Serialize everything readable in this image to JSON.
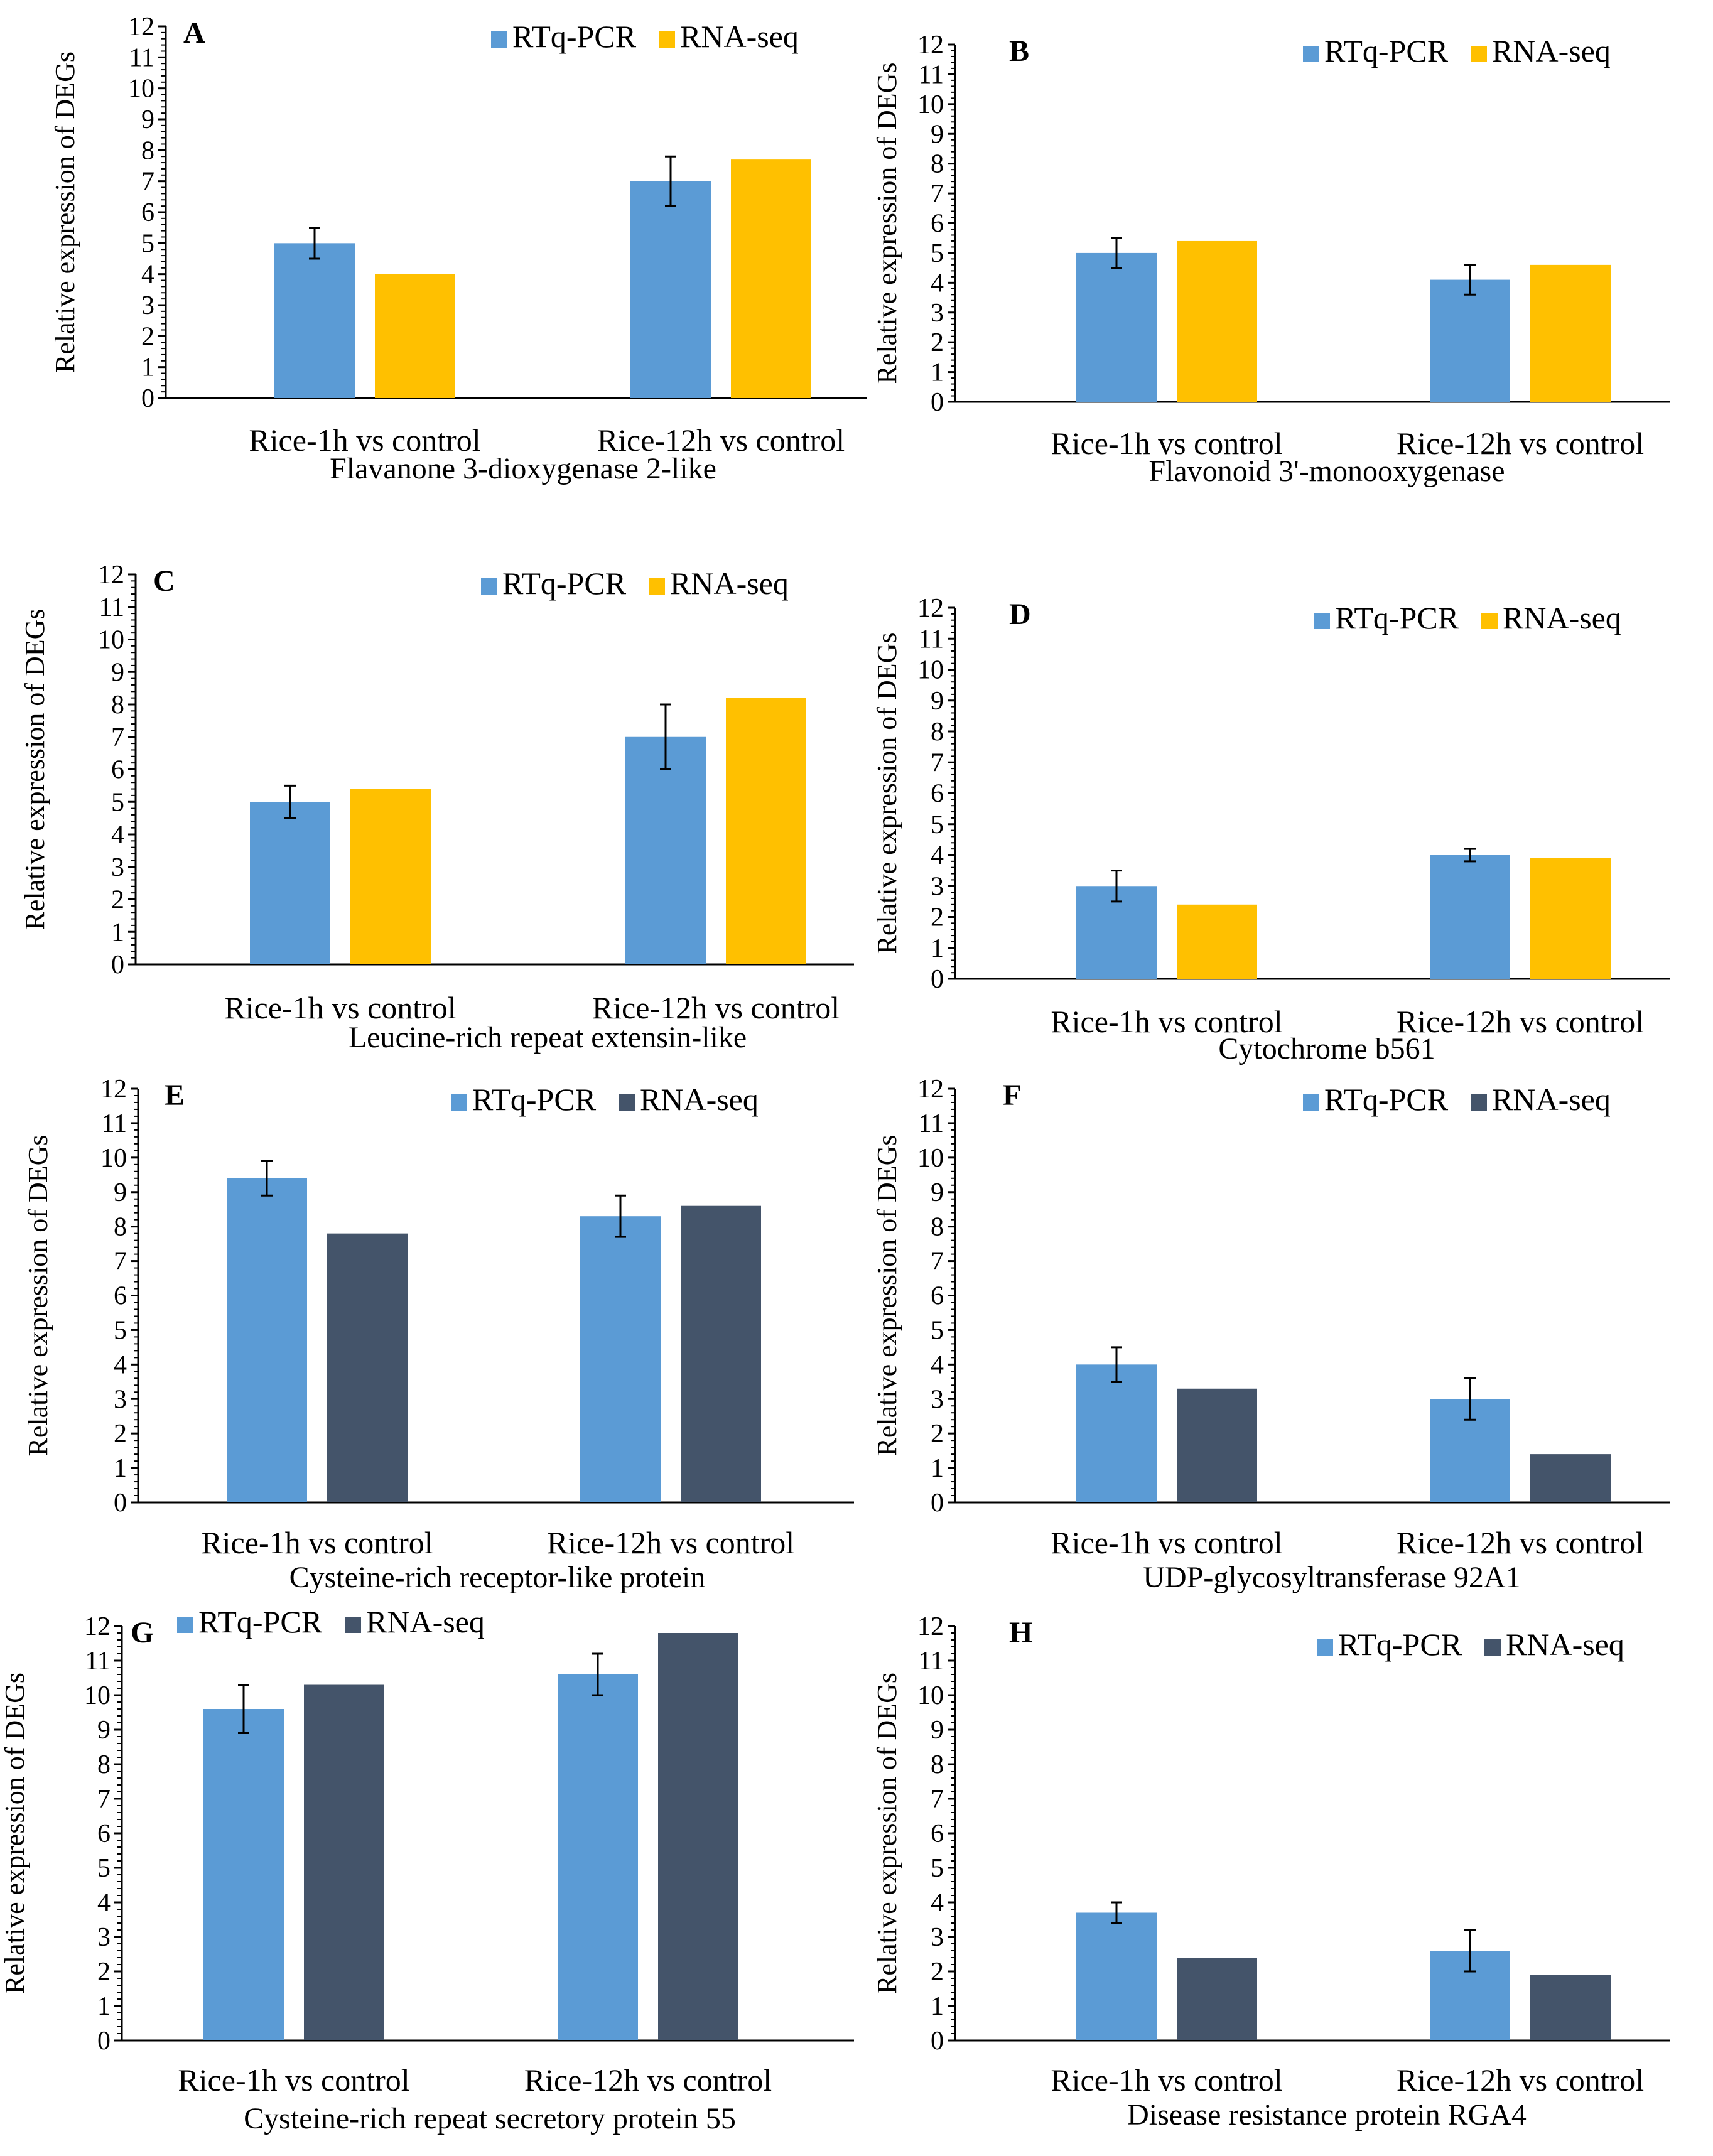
{
  "figure_description_label": "Figure",
  "colors": {
    "rtqpcr": "#5b9bd5",
    "rnaseq_gold": "#ffc000",
    "rnaseq_dark": "#44546a",
    "axis": "#000000"
  },
  "chart_data": [
    {
      "panel": "A",
      "type": "bar",
      "title": "Flavanone  3-dioxygenase  2-like",
      "ylabel": "Relative expression of DEGs",
      "ylim": [
        0,
        12
      ],
      "yticks": [
        0,
        1,
        2,
        3,
        4,
        5,
        6,
        7,
        8,
        9,
        10,
        11,
        12
      ],
      "categories": [
        "Rice-1h vs control",
        "Rice-12h vs control"
      ],
      "series": [
        {
          "name": "RTq-PCR",
          "values": [
            5.0,
            7.0
          ],
          "error": [
            0.5,
            0.8
          ],
          "color": "#5b9bd5"
        },
        {
          "name": "RNA-seq",
          "values": [
            4.0,
            7.7
          ],
          "color": "#ffc000"
        }
      ]
    },
    {
      "panel": "B",
      "type": "bar",
      "title": "Flavonoid  3'-monooxygenase",
      "ylabel": "Relative expression of DEGs",
      "ylim": [
        0,
        12
      ],
      "yticks": [
        0,
        1,
        2,
        3,
        4,
        5,
        6,
        7,
        8,
        9,
        10,
        11,
        12
      ],
      "categories": [
        "Rice-1h vs control",
        "Rice-12h vs control"
      ],
      "series": [
        {
          "name": "RTq-PCR",
          "values": [
            5.0,
            4.1
          ],
          "error": [
            0.5,
            0.5
          ],
          "color": "#5b9bd5"
        },
        {
          "name": "RNA-seq",
          "values": [
            5.4,
            4.6
          ],
          "color": "#ffc000"
        }
      ]
    },
    {
      "panel": "C",
      "type": "bar",
      "title": "Leucine-rich  repeat  extensin-like",
      "ylabel": "Relative expression of DEGs",
      "ylim": [
        0,
        12
      ],
      "yticks": [
        0,
        1,
        2,
        3,
        4,
        5,
        6,
        7,
        8,
        9,
        10,
        11,
        12
      ],
      "categories": [
        "Rice-1h vs control",
        "Rice-12h vs control"
      ],
      "series": [
        {
          "name": "RTq-PCR",
          "values": [
            5.0,
            7.0
          ],
          "error": [
            0.5,
            1.0
          ],
          "color": "#5b9bd5"
        },
        {
          "name": "RNA-seq",
          "values": [
            5.4,
            8.2
          ],
          "color": "#ffc000"
        }
      ]
    },
    {
      "panel": "D",
      "type": "bar",
      "title": "Cytochrome  b561",
      "ylabel": "Relative expression of DEGs",
      "ylim": [
        0,
        12
      ],
      "yticks": [
        0,
        1,
        2,
        3,
        4,
        5,
        6,
        7,
        8,
        9,
        10,
        11,
        12
      ],
      "categories": [
        "Rice-1h vs control",
        "Rice-12h vs control"
      ],
      "series": [
        {
          "name": "RTq-PCR",
          "values": [
            3.0,
            4.0
          ],
          "error": [
            0.5,
            0.2
          ],
          "color": "#5b9bd5"
        },
        {
          "name": "RNA-seq",
          "values": [
            2.4,
            3.9
          ],
          "color": "#ffc000"
        }
      ]
    },
    {
      "panel": "E",
      "type": "bar",
      "title": "Cysteine-rich  receptor-like  protein",
      "ylabel": "Relative expression of DEGs",
      "ylim": [
        0,
        12
      ],
      "yticks": [
        0,
        1,
        2,
        3,
        4,
        5,
        6,
        7,
        8,
        9,
        10,
        11,
        12
      ],
      "categories": [
        "Rice-1h vs control",
        "Rice-12h vs control"
      ],
      "series": [
        {
          "name": "RTq-PCR",
          "values": [
            9.4,
            8.3
          ],
          "error": [
            0.5,
            0.6
          ],
          "color": "#5b9bd5"
        },
        {
          "name": "RNA-seq",
          "values": [
            7.8,
            8.6
          ],
          "color": "#44546a"
        }
      ]
    },
    {
      "panel": "F",
      "type": "bar",
      "title": "UDP-glycosyltransferase  92A1",
      "ylabel": "Relative expression of DEGs",
      "ylim": [
        0,
        12
      ],
      "yticks": [
        0,
        1,
        2,
        3,
        4,
        5,
        6,
        7,
        8,
        9,
        10,
        11,
        12
      ],
      "categories": [
        "Rice-1h vs control",
        "Rice-12h vs control"
      ],
      "series": [
        {
          "name": "RTq-PCR",
          "values": [
            4.0,
            3.0
          ],
          "error": [
            0.5,
            0.6
          ],
          "color": "#5b9bd5"
        },
        {
          "name": "RNA-seq",
          "values": [
            3.3,
            1.4
          ],
          "color": "#44546a"
        }
      ]
    },
    {
      "panel": "G",
      "type": "bar",
      "title": "Cysteine-rich  repeat  secretory  protein  55",
      "ylabel": "Relative expression of DEGs",
      "ylim": [
        0,
        12
      ],
      "yticks": [
        0,
        1,
        2,
        3,
        4,
        5,
        6,
        7,
        8,
        9,
        10,
        11,
        12
      ],
      "categories": [
        "Rice-1h vs control",
        "Rice-12h vs control"
      ],
      "series": [
        {
          "name": "RTq-PCR",
          "values": [
            9.6,
            10.6
          ],
          "error": [
            0.7,
            0.6
          ],
          "color": "#5b9bd5"
        },
        {
          "name": "RNA-seq",
          "values": [
            10.3,
            11.8
          ],
          "color": "#44546a"
        }
      ]
    },
    {
      "panel": "H",
      "type": "bar",
      "title": "Disease resistance  protein  RGA4",
      "ylabel": "Relative expression of DEGs",
      "ylim": [
        0,
        12
      ],
      "yticks": [
        0,
        1,
        2,
        3,
        4,
        5,
        6,
        7,
        8,
        9,
        10,
        11,
        12
      ],
      "categories": [
        "Rice-1h vs control",
        "Rice-12h vs control"
      ],
      "series": [
        {
          "name": "RTq-PCR",
          "values": [
            3.7,
            2.6
          ],
          "error": [
            0.3,
            0.6
          ],
          "color": "#5b9bd5"
        },
        {
          "name": "RNA-seq",
          "values": [
            2.4,
            1.9
          ],
          "color": "#44546a"
        }
      ]
    }
  ]
}
